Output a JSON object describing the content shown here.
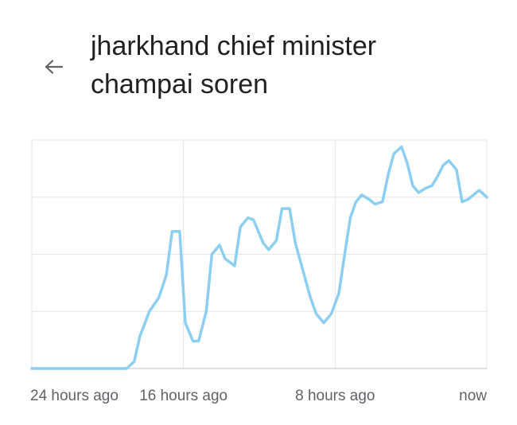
{
  "header": {
    "back_icon": "arrow-left-icon",
    "title_lines": [
      "jharkhand chief minister",
      "champai soren"
    ]
  },
  "colors": {
    "line": "#8ccff0",
    "grid": "#e6e6e6",
    "axis": "#d6d6d6",
    "label": "#5f6368",
    "title": "#202124"
  },
  "chart_data": {
    "type": "line",
    "title": "",
    "xlabel": "",
    "ylabel": "",
    "x_tick_labels": [
      "24 hours ago",
      "16 hours ago",
      "8 hours ago",
      "now"
    ],
    "x_range_hours_ago": [
      24,
      0
    ],
    "ylim": [
      0,
      100
    ],
    "grid": true,
    "legend": "none",
    "series": [
      {
        "x_hours_ago": [
          24,
          22,
          20,
          19,
          18.6,
          18.3,
          17.8,
          17.3,
          16.9,
          16.6,
          16.2,
          15.9,
          15.5,
          15.2,
          14.8,
          14.5,
          14.1,
          13.8,
          13.3,
          13.0,
          12.6,
          12.3,
          11.8,
          11.5,
          11.1,
          10.8,
          10.4,
          10.1,
          9.6,
          9.3,
          9.0,
          8.6,
          8.2,
          7.8,
          7.5,
          7.2,
          6.9,
          6.6,
          6.2,
          5.9,
          5.5,
          5.2,
          4.9,
          4.5,
          4.2,
          3.9,
          3.6,
          3.2,
          2.9,
          2.6,
          2.3,
          2.0,
          1.6,
          1.3,
          1.0,
          0.7,
          0.4,
          0
        ],
        "values": [
          0,
          0,
          0,
          0,
          3,
          14,
          25,
          31,
          41,
          60,
          60,
          20,
          12,
          12,
          25,
          50,
          54,
          48,
          45,
          62,
          66,
          65,
          55,
          52,
          56,
          70,
          70,
          55,
          40,
          31,
          24,
          20,
          24,
          33,
          50,
          66,
          73,
          76,
          74,
          72,
          73,
          85,
          94,
          97,
          90,
          80,
          77,
          79,
          80,
          84,
          89,
          91,
          87,
          73,
          74,
          76,
          78,
          75
        ]
      }
    ]
  }
}
